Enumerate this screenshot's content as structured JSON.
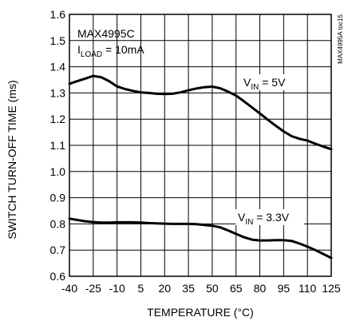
{
  "chart_data": {
    "type": "line",
    "title": "",
    "xlabel": "TEMPERATURE (°C)",
    "ylabel": "SWITCH TURN-OFF TIME (ms)",
    "xlim": [
      -40,
      125
    ],
    "ylim": [
      0.6,
      1.6
    ],
    "grid": true,
    "x_ticks": [
      -40,
      -25,
      -10,
      5,
      20,
      35,
      50,
      65,
      80,
      95,
      110,
      125
    ],
    "y_ticks": [
      "0.6",
      "0.7",
      "0.8",
      "0.9",
      "1.0",
      "1.1",
      "1.2",
      "1.3",
      "1.4",
      "1.5",
      "1.6"
    ],
    "annotation": {
      "part": "MAX4995C",
      "load_prefix": "I",
      "load_sub": "LOAD",
      "load_suffix": " = 10mA"
    },
    "side_code": "MAX4995A toc15",
    "series": [
      {
        "label_prefix": "V",
        "label_sub": "IN",
        "label_suffix": " = 5V",
        "x": [
          -40,
          -35,
          -30,
          -25,
          -20,
          -15,
          -10,
          -5,
          0,
          5,
          10,
          15,
          20,
          25,
          30,
          35,
          40,
          45,
          50,
          55,
          60,
          65,
          70,
          75,
          80,
          85,
          90,
          95,
          100,
          105,
          110,
          115,
          120,
          125
        ],
        "y": [
          1.335,
          1.345,
          1.355,
          1.365,
          1.36,
          1.345,
          1.325,
          1.315,
          1.308,
          1.302,
          1.3,
          1.297,
          1.296,
          1.297,
          1.302,
          1.31,
          1.317,
          1.322,
          1.324,
          1.318,
          1.305,
          1.29,
          1.268,
          1.245,
          1.222,
          1.198,
          1.175,
          1.153,
          1.135,
          1.125,
          1.118,
          1.106,
          1.095,
          1.085
        ]
      },
      {
        "label_prefix": "V",
        "label_sub": "IN",
        "label_suffix": " = 3.3V",
        "x": [
          -40,
          -35,
          -30,
          -25,
          -20,
          -15,
          -10,
          -5,
          0,
          5,
          10,
          15,
          20,
          25,
          30,
          35,
          40,
          45,
          50,
          55,
          60,
          65,
          70,
          75,
          80,
          85,
          90,
          95,
          100,
          105,
          110,
          115,
          120,
          125
        ],
        "y": [
          0.82,
          0.815,
          0.81,
          0.807,
          0.805,
          0.805,
          0.806,
          0.806,
          0.806,
          0.805,
          0.803,
          0.802,
          0.801,
          0.8,
          0.8,
          0.8,
          0.799,
          0.796,
          0.793,
          0.787,
          0.775,
          0.762,
          0.749,
          0.74,
          0.737,
          0.737,
          0.738,
          0.738,
          0.735,
          0.725,
          0.713,
          0.7,
          0.685,
          0.67
        ]
      }
    ]
  }
}
